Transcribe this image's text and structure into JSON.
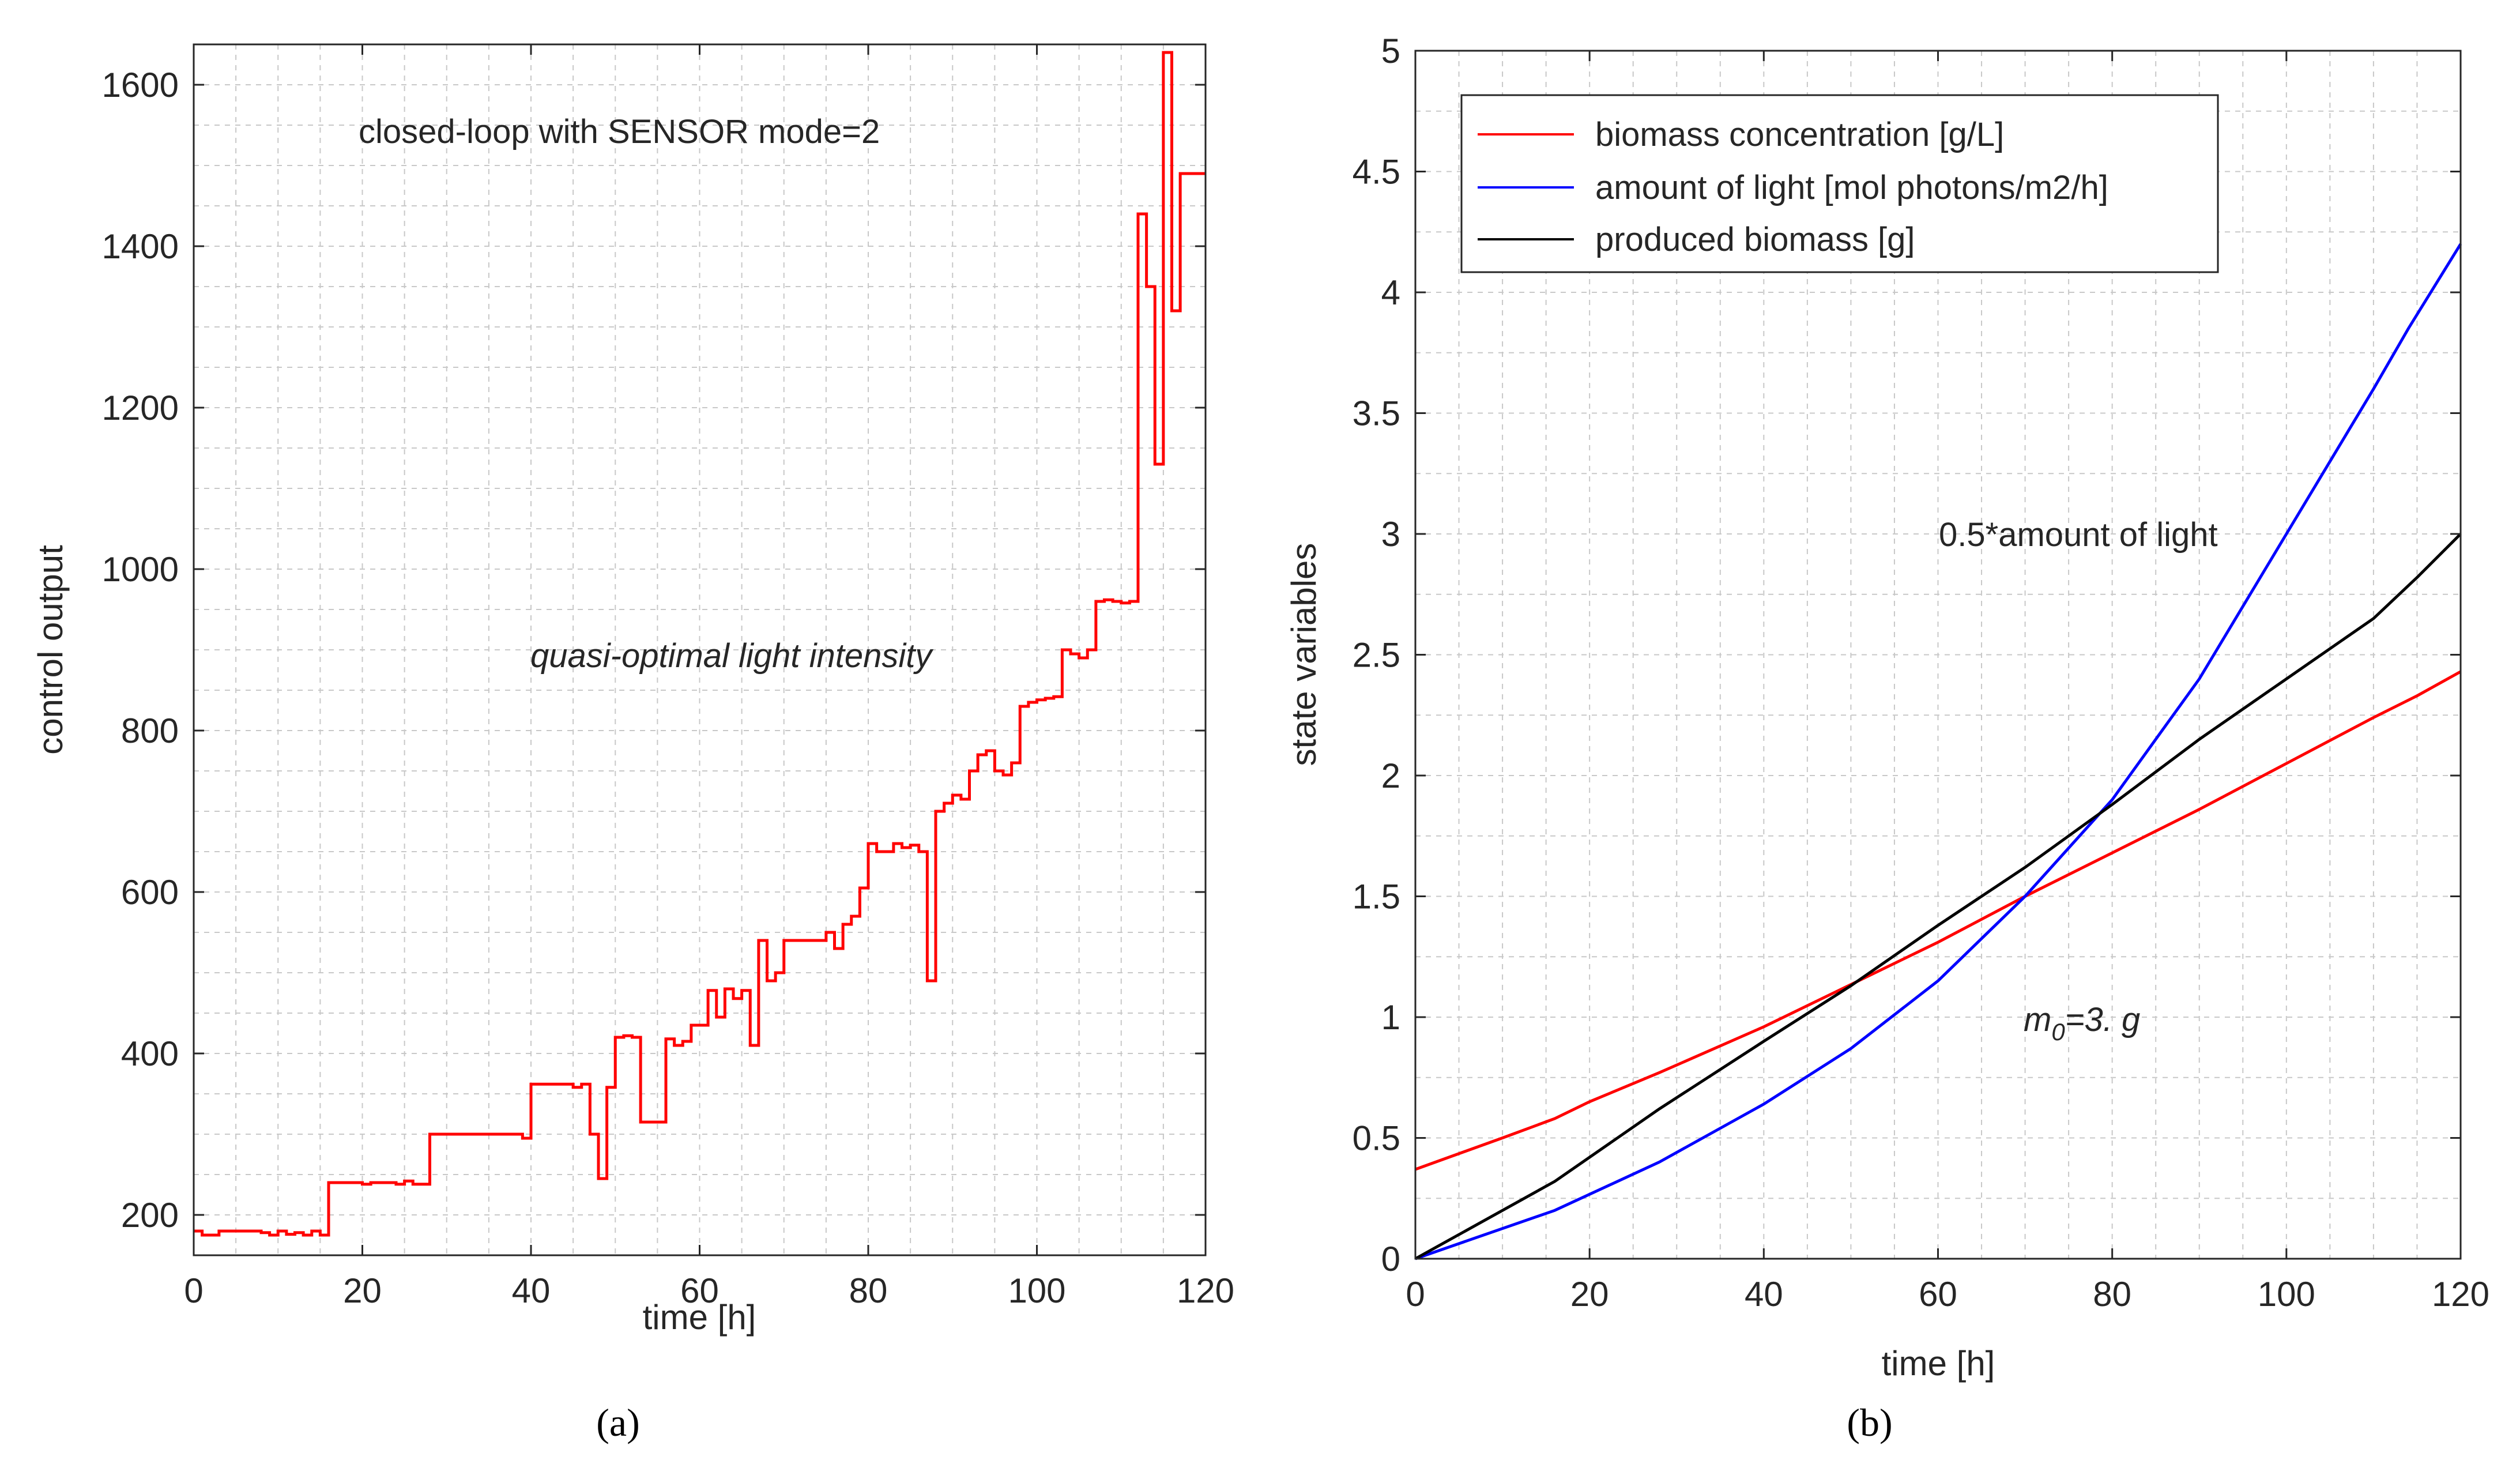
{
  "chart_data": [
    {
      "type": "line",
      "panel_label": "(a)",
      "title": "",
      "xlabel": "time [h]",
      "ylabel": "control output",
      "xlim": [
        0,
        120
      ],
      "ylim": [
        150,
        1650
      ],
      "xticks": [
        0,
        20,
        40,
        60,
        80,
        100,
        120
      ],
      "yticks": [
        200,
        400,
        600,
        800,
        1000,
        1200,
        1400,
        1600
      ],
      "grid": true,
      "minor_grid": true,
      "annotations": [
        {
          "text": "closed-loop with SENSOR mode=2",
          "x": 55,
          "y": 1605,
          "style": "normal"
        },
        {
          "text": "quasi-optimal light intensity",
          "x": 68,
          "y": 890,
          "style": "italic"
        }
      ],
      "series": [
        {
          "name": "control output",
          "color": "#ff0000",
          "step": true,
          "x": [
            0,
            1,
            3,
            8,
            9,
            10,
            11,
            12,
            13,
            14,
            15,
            16,
            20,
            21,
            24,
            25,
            26,
            28,
            36,
            39,
            40,
            45,
            46,
            47,
            48,
            49,
            50,
            51,
            52,
            53,
            56,
            57,
            58,
            59,
            61,
            62,
            63,
            64,
            65,
            66,
            67,
            68,
            69,
            70,
            74,
            75,
            76,
            77,
            78,
            79,
            80,
            81,
            83,
            84,
            85,
            86,
            87,
            88,
            89,
            90,
            91,
            92,
            93,
            94,
            95,
            96,
            97,
            98,
            99,
            100,
            101,
            102,
            103,
            104,
            105,
            106,
            107,
            108,
            109,
            110,
            111,
            112,
            113,
            114,
            115,
            116,
            117,
            118,
            119,
            120
          ],
          "values": [
            180,
            175,
            180,
            178,
            175,
            180,
            176,
            178,
            175,
            180,
            175,
            240,
            238,
            240,
            238,
            242,
            238,
            300,
            300,
            295,
            362,
            358,
            362,
            300,
            245,
            358,
            420,
            422,
            420,
            315,
            418,
            410,
            415,
            435,
            478,
            445,
            480,
            468,
            478,
            410,
            540,
            490,
            500,
            540,
            540,
            550,
            530,
            560,
            570,
            605,
            660,
            650,
            660,
            655,
            658,
            650,
            490,
            700,
            710,
            720,
            715,
            750,
            770,
            775,
            750,
            745,
            760,
            830,
            835,
            838,
            840,
            842,
            900,
            895,
            890,
            900,
            960,
            962,
            960,
            958,
            960,
            1440,
            1350,
            1130,
            1640,
            1320,
            1490,
            1490,
            1490,
            1490
          ]
        }
      ]
    },
    {
      "type": "line",
      "panel_label": "(b)",
      "title": "",
      "xlabel": "time [h]",
      "ylabel": "state variables",
      "xlim": [
        0,
        120
      ],
      "ylim": [
        0,
        5
      ],
      "xticks": [
        0,
        20,
        40,
        60,
        80,
        100,
        120
      ],
      "yticks": [
        "0",
        "0.5",
        "1",
        "1.5",
        "2",
        "2.5",
        "3",
        "3.5",
        "4",
        "4.5",
        "5"
      ],
      "grid": true,
      "minor_grid": true,
      "legend_position": "top-left",
      "annotations": [
        {
          "text": "0.5*amount of light",
          "x": 60,
          "y": 2.95,
          "style": "normal"
        },
        {
          "text_main": "m",
          "text_sub": "0",
          "text_rest": "=3. g",
          "x": 70,
          "y": 0.98,
          "style": "italic"
        }
      ],
      "series": [
        {
          "name": "biomass concentration [g/L]",
          "color": "#ff0000",
          "x": [
            0,
            10,
            16,
            20,
            28,
            40,
            52,
            60,
            70,
            80,
            90,
            100,
            110,
            115,
            120
          ],
          "values": [
            0.37,
            0.5,
            0.58,
            0.65,
            0.77,
            0.96,
            1.17,
            1.31,
            1.5,
            1.68,
            1.86,
            2.05,
            2.24,
            2.33,
            2.43
          ]
        },
        {
          "name": "amount of light [mol photons/m2/h]",
          "color": "#0000ff",
          "x": [
            0,
            16,
            28,
            40,
            50,
            60,
            70,
            80,
            90,
            100,
            110,
            114,
            120
          ],
          "values": [
            0,
            0.2,
            0.4,
            0.64,
            0.87,
            1.15,
            1.5,
            1.9,
            2.4,
            3.0,
            3.6,
            3.85,
            4.2
          ]
        },
        {
          "name": "produced biomass [g]",
          "color": "#000000",
          "x": [
            0,
            16,
            28,
            40,
            50,
            60,
            70,
            80,
            90,
            100,
            110,
            115,
            120
          ],
          "values": [
            0,
            0.32,
            0.62,
            0.9,
            1.13,
            1.38,
            1.62,
            1.88,
            2.15,
            2.4,
            2.65,
            2.82,
            3.0
          ]
        }
      ]
    }
  ]
}
